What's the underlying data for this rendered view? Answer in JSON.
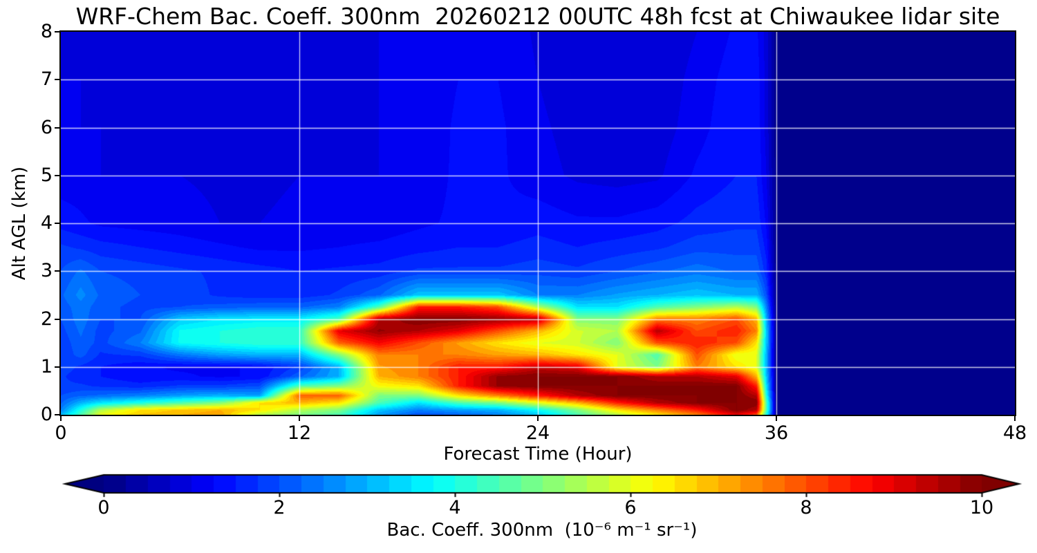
{
  "chart_data": {
    "type": "heatmap",
    "title": "WRF-Chem Bac. Coeff. 300nm  20260212 00UTC 48h fcst at Chiwaukee lidar site",
    "xlabel": "Forecast Time (Hour)",
    "ylabel": "Alt AGL (km)",
    "x_range": [
      0,
      48
    ],
    "y_range": [
      0,
      8
    ],
    "x_ticks": [
      0,
      12,
      24,
      36,
      48
    ],
    "y_ticks": [
      0,
      1,
      2,
      3,
      4,
      5,
      6,
      7,
      8
    ],
    "grid_x_hours": [
      12,
      24,
      36
    ],
    "grid_y_km": [
      1,
      2,
      3,
      4,
      5,
      6,
      7
    ],
    "grid_on": true,
    "colormap": "jet",
    "clim": [
      0,
      10
    ],
    "level_step": 0.25,
    "colorbar": {
      "label": "Bac. Coeff. 300nm  (10⁻⁶ m⁻¹ sr⁻¹)",
      "ticks": [
        0,
        2,
        4,
        6,
        8,
        10
      ],
      "extend": "both",
      "orientation": "horizontal"
    },
    "x_hours": [
      0,
      1,
      2,
      4,
      6,
      8,
      10,
      12,
      14,
      16,
      18,
      20,
      22,
      24,
      26,
      28,
      30,
      32,
      34,
      35,
      35.5,
      36,
      48
    ],
    "y_alt_km": [
      0,
      0.1,
      0.25,
      0.4,
      0.6,
      0.8,
      1.0,
      1.25,
      1.5,
      1.75,
      2.0,
      2.25,
      2.5,
      3.0,
      3.5,
      4.0,
      5.0,
      6.0,
      7.0,
      8.0
    ],
    "values": [
      [
        3.0,
        4.5,
        6.0,
        6.8,
        7.0,
        7.2,
        5.5,
        5.0,
        4.5,
        2.8,
        2.0,
        2.2,
        2.5,
        3.2,
        4.5,
        5.5,
        6.5,
        7.5,
        9.0,
        8.0,
        4.0,
        0.1,
        0.1
      ],
      [
        2.5,
        4.0,
        5.5,
        6.5,
        6.8,
        7.0,
        6.5,
        5.5,
        5.0,
        3.2,
        2.5,
        2.8,
        3.0,
        3.8,
        5.0,
        6.5,
        7.5,
        8.5,
        10,
        9.5,
        4.5,
        0.1,
        0.1
      ],
      [
        2.2,
        3.0,
        3.5,
        4.0,
        4.5,
        5.0,
        6.5,
        7.0,
        6.5,
        4.5,
        3.5,
        4.5,
        5.0,
        6.0,
        7.0,
        8.5,
        9.5,
        10,
        10,
        10,
        4.5,
        0.1,
        0.1
      ],
      [
        2.0,
        2.2,
        2.3,
        2.5,
        2.8,
        3.0,
        2.8,
        7.8,
        7.8,
        5.0,
        5.0,
        6.5,
        7.5,
        8.5,
        9.5,
        10,
        10,
        10,
        10,
        9.5,
        4.0,
        0.1,
        0.1
      ],
      [
        1.8,
        1.8,
        1.7,
        1.6,
        1.8,
        1.8,
        2.0,
        4.5,
        5.0,
        6.2,
        6.5,
        8.5,
        9.8,
        10,
        10,
        10,
        10,
        10,
        10,
        8.5,
        3.5,
        0.1,
        0.1
      ],
      [
        1.8,
        1.6,
        1.5,
        1.3,
        1.3,
        1.2,
        1.3,
        2.2,
        3.0,
        7.0,
        7.5,
        8.5,
        9.8,
        10,
        10,
        10,
        9.5,
        9.5,
        9.0,
        7.0,
        3.2,
        0.1,
        0.1
      ],
      [
        1.9,
        1.7,
        1.5,
        1.3,
        1.2,
        1.2,
        1.3,
        1.8,
        3.0,
        7.2,
        7.5,
        8.5,
        8.5,
        9.3,
        9.0,
        6.0,
        5.0,
        7.5,
        6.5,
        6.0,
        3.0,
        0.1,
        0.1
      ],
      [
        1.8,
        2.1,
        1.7,
        1.8,
        2.4,
        2.8,
        3.0,
        3.0,
        5.0,
        7.5,
        7.5,
        7.5,
        7.2,
        7.0,
        6.5,
        6.0,
        4.5,
        8.0,
        6.0,
        6.0,
        3.0,
        0.1,
        0.1
      ],
      [
        1.8,
        2.2,
        1.9,
        2.5,
        3.8,
        4.0,
        4.2,
        4.2,
        7.8,
        8.8,
        8.0,
        7.2,
        6.5,
        6.0,
        5.8,
        5.0,
        8.0,
        8.5,
        8.0,
        6.5,
        3.2,
        0.1,
        0.1
      ],
      [
        1.9,
        2.3,
        1.9,
        2.2,
        3.8,
        4.0,
        4.2,
        4.2,
        9.0,
        9.8,
        9.5,
        9.0,
        8.0,
        7.0,
        5.8,
        5.5,
        9.5,
        8.0,
        8.5,
        7.5,
        3.2,
        0.1,
        0.1
      ],
      [
        2.0,
        2.4,
        2.0,
        2.0,
        3.2,
        3.5,
        3.6,
        3.6,
        4.5,
        9.5,
        10,
        10,
        9.8,
        9.5,
        5.0,
        5.0,
        7.5,
        7.5,
        8.0,
        7.0,
        3.0,
        0.1,
        0.1
      ],
      [
        2.1,
        2.4,
        2.1,
        1.9,
        2.0,
        2.1,
        2.2,
        2.2,
        2.5,
        4.5,
        8.5,
        8.5,
        8.0,
        5.5,
        3.5,
        3.5,
        4.5,
        5.0,
        5.5,
        5.0,
        2.5,
        0.1,
        0.1
      ],
      [
        2.2,
        2.6,
        2.2,
        2.0,
        1.9,
        1.7,
        1.6,
        1.6,
        1.8,
        2.2,
        3.2,
        3.2,
        3.2,
        2.5,
        2.5,
        2.8,
        3.0,
        3.2,
        3.0,
        3.0,
        2.0,
        0.1,
        0.1
      ],
      [
        2.0,
        2.3,
        2.0,
        1.9,
        1.8,
        1.7,
        1.6,
        1.5,
        1.55,
        1.6,
        1.8,
        1.8,
        1.8,
        1.9,
        1.8,
        2.0,
        2.2,
        2.4,
        2.2,
        2.2,
        1.6,
        0.1,
        0.1
      ],
      [
        1.8,
        1.7,
        1.6,
        1.5,
        1.4,
        1.3,
        1.2,
        1.2,
        1.25,
        1.3,
        1.4,
        1.5,
        1.5,
        1.6,
        1.5,
        1.6,
        1.7,
        1.9,
        1.9,
        1.9,
        1.4,
        0.1,
        0.1
      ],
      [
        1.4,
        1.3,
        1.2,
        1.15,
        1.1,
        1.0,
        1.0,
        1.05,
        1.1,
        1.1,
        1.2,
        1.3,
        1.3,
        1.4,
        1.3,
        1.3,
        1.4,
        1.6,
        1.7,
        1.7,
        1.2,
        0.1,
        0.1
      ],
      [
        1.1,
        1.1,
        1.0,
        1.0,
        1.0,
        0.95,
        0.95,
        1.0,
        1.0,
        1.0,
        1.1,
        1.3,
        1.3,
        1.1,
        0.95,
        0.9,
        0.95,
        1.3,
        1.5,
        1.5,
        1.0,
        0.1,
        0.1
      ],
      [
        1.0,
        1.0,
        1.0,
        0.95,
        0.95,
        0.9,
        0.9,
        0.95,
        0.95,
        1.0,
        1.05,
        1.3,
        1.3,
        1.05,
        0.9,
        0.8,
        0.85,
        1.15,
        1.45,
        1.45,
        0.9,
        0.1,
        0.1
      ],
      [
        1.0,
        1.0,
        0.95,
        0.95,
        0.95,
        0.9,
        0.9,
        0.95,
        1.0,
        1.0,
        1.05,
        1.25,
        1.25,
        1.0,
        0.85,
        0.8,
        0.8,
        1.1,
        1.4,
        1.4,
        0.9,
        0.1,
        0.1
      ],
      [
        0.9,
        0.9,
        0.9,
        0.9,
        0.85,
        0.85,
        0.85,
        0.9,
        0.95,
        1.0,
        1.0,
        1.2,
        1.2,
        0.95,
        0.85,
        0.75,
        0.75,
        1.0,
        1.3,
        1.3,
        0.9,
        0.1,
        0.1
      ]
    ]
  },
  "colors": {
    "background": "#ffffff",
    "axis": "#000000",
    "gridline_rgba": "rgba(255,255,255,0.8)",
    "no_data_navy": "#00008a",
    "max_dark_red": "#800000"
  }
}
